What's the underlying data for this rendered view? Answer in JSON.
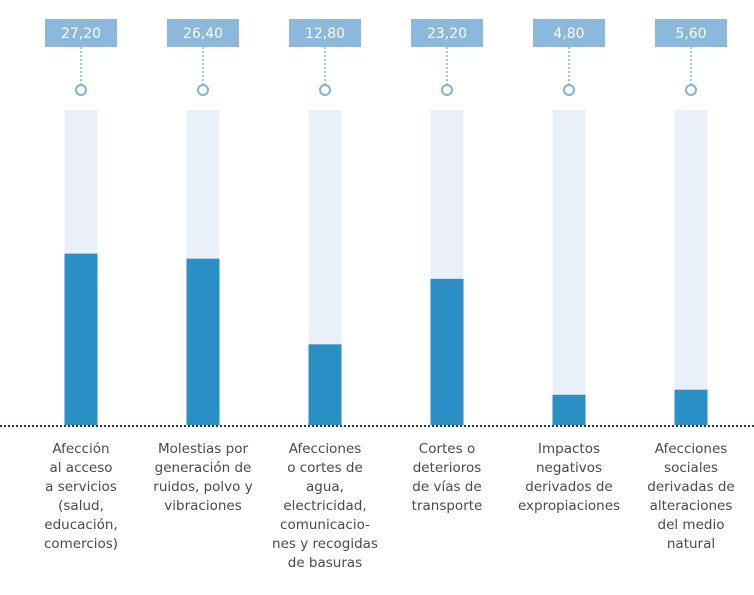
{
  "chart_data": {
    "type": "bar",
    "categories": [
      "Afección\nal acceso\na servicios\n(salud,\neducación,\ncomercios)",
      "Molestias por\ngeneración de\nruidos, polvo y\nvibraciones",
      "Afecciones\no cortes de\nagua,\nelectricidad,\ncomunicacio-\nnes y recogidas\nde basuras",
      "Cortes o\ndeterioros\nde vías de\ntransporte",
      "Impactos\nnegativos\nderivados de\nexpropiaciones",
      "Afecciones\nsociales\nderivadas de\nalteraciones\ndel medio\nnatural"
    ],
    "values": [
      27.2,
      26.4,
      12.8,
      23.2,
      4.8,
      5.6
    ],
    "value_labels": [
      "27,20",
      "26,40",
      "12,80",
      "23,20",
      "4,80",
      "5,60"
    ],
    "color": "#2a8fc4",
    "ylim": [
      0,
      50
    ]
  }
}
